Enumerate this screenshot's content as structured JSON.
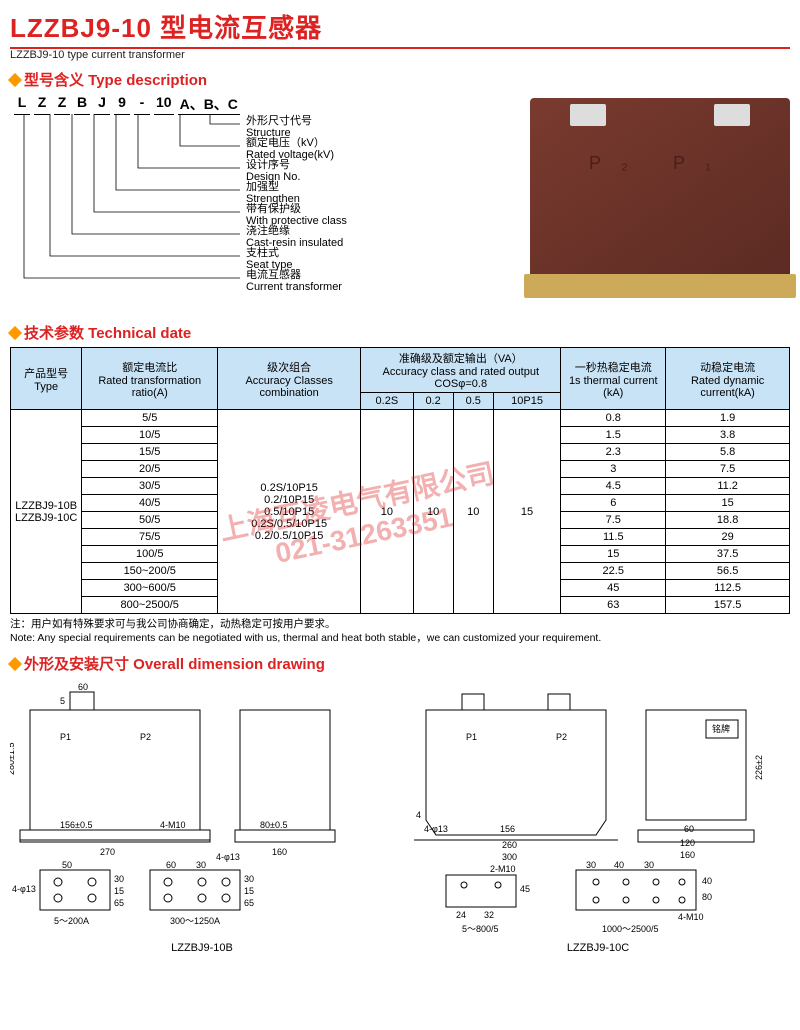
{
  "title": {
    "cn": "LZZBJ9-10 型电流互感器",
    "en": "LZZBJ9-10  type current transformer"
  },
  "sections": {
    "typedesc": "型号含义 Type description",
    "tech": "技术参数 Technical date",
    "dims": "外形及安装尺寸 Overall dimension drawing"
  },
  "typecode": {
    "letters": [
      "L",
      "Z",
      "Z",
      "B",
      "J",
      "9",
      "-",
      "10",
      "A、B、C"
    ]
  },
  "typedesc_items": [
    {
      "cn": "外形尺寸代号",
      "en": "Structure"
    },
    {
      "cn": "额定电压（kV）",
      "en": "Rated voltage(kV)"
    },
    {
      "cn": "设计序号",
      "en": "Design No."
    },
    {
      "cn": "加强型",
      "en": "Strengthen"
    },
    {
      "cn": "带有保护级",
      "en": "With protective class"
    },
    {
      "cn": "浇注绝缘",
      "en": "Cast-resin insulated"
    },
    {
      "cn": "支柱式",
      "en": "Seat type"
    },
    {
      "cn": "电流互感器",
      "en": "Current transformer"
    }
  ],
  "watermark": {
    "line1": "上海互凌电气有限公司",
    "line2": "021-31263351"
  },
  "table": {
    "headers": {
      "type": {
        "cn": "产品型号",
        "en": "Type"
      },
      "ratio": {
        "cn": "额定电流比",
        "en": "Rated transformation ratio(A)"
      },
      "classes": {
        "cn": "级次组合",
        "en": "Accuracy Classes combination"
      },
      "accuracy": {
        "cn": "准确级及额定输出（VA）",
        "en": "Accuracy class and rated output COSφ=0.8"
      },
      "thermal": {
        "cn": "一秒热稳定电流",
        "en": "1s thermal current (kA)"
      },
      "dynamic": {
        "cn": "动稳定电流",
        "en": "Rated dynamic current(kA)"
      },
      "cols": [
        "0.2S",
        "0.2",
        "0.5",
        "10P15"
      ]
    },
    "type_label": "LZZBJ9-10B\nLZZBJ9-10C",
    "classes_list": "0.2S/10P15\n0.2/10P15\n0.5/10P15\n0.2S/0.5/10P15\n0.2/0.5/10P15",
    "output_vals": {
      "c02s": "10",
      "c02": "10",
      "c05": "10",
      "c10p15": "15"
    },
    "rows": [
      {
        "ratio": "5/5",
        "thermal": "0.8",
        "dynamic": "1.9"
      },
      {
        "ratio": "10/5",
        "thermal": "1.5",
        "dynamic": "3.8"
      },
      {
        "ratio": "15/5",
        "thermal": "2.3",
        "dynamic": "5.8"
      },
      {
        "ratio": "20/5",
        "thermal": "3",
        "dynamic": "7.5"
      },
      {
        "ratio": "30/5",
        "thermal": "4.5",
        "dynamic": "11.2"
      },
      {
        "ratio": "40/5",
        "thermal": "6",
        "dynamic": "15"
      },
      {
        "ratio": "50/5",
        "thermal": "7.5",
        "dynamic": "18.8"
      },
      {
        "ratio": "75/5",
        "thermal": "11.5",
        "dynamic": "29"
      },
      {
        "ratio": "100/5",
        "thermal": "15",
        "dynamic": "37.5"
      },
      {
        "ratio": "150~200/5",
        "thermal": "22.5",
        "dynamic": "56.5"
      },
      {
        "ratio": "300~600/5",
        "thermal": "45",
        "dynamic": "112.5"
      },
      {
        "ratio": "800~2500/5",
        "thermal": "63",
        "dynamic": "157.5"
      }
    ]
  },
  "note": {
    "cn": "注：用户如有特殊要求可与我公司协商确定，动热稳定可按用户要求。",
    "en": "Note: Any special requirements can be negotiated with us, thermal and heat both stable，we can customized your requirement."
  },
  "dims": {
    "b": {
      "front": {
        "p1": "P1",
        "p2": "P2",
        "d156": "156±0.5",
        "d270": "270",
        "hole": "4-M10",
        "h280": "280±1.5",
        "d60": "60",
        "d5": "5"
      },
      "side": {
        "d80": "80±0.5",
        "d160": "160"
      },
      "mount1": {
        "d50": "50",
        "hole": "4-φ13",
        "d30": "30",
        "d15": "15",
        "d65": "65",
        "label": "5～200A"
      },
      "mount2": {
        "d60": "60",
        "d30": "30",
        "hole": "4-φ13",
        "d30b": "30",
        "d15": "15",
        "d65": "65",
        "label": "300～1250A"
      },
      "label": "LZZBJ9-10B"
    },
    "c": {
      "front": {
        "p1": "P1",
        "p2": "P2",
        "d156": "156",
        "d260": "260",
        "d300": "300",
        "hole": "4-φ13",
        "d4": "4"
      },
      "side": {
        "mp": "铭牌",
        "d60": "60",
        "d120": "120",
        "d160": "160",
        "h226": "226±2"
      },
      "mount1": {
        "hole": "2-M10",
        "d45": "45",
        "d24": "24",
        "d32": "32",
        "label": "5～800/5"
      },
      "mount2": {
        "d30": "30",
        "d40": "40",
        "d30b": "30",
        "d40b": "40",
        "d80": "80",
        "hole": "4-M10",
        "label": "1000～2500/5"
      },
      "label": "LZZBJ9-10C"
    }
  },
  "colors": {
    "accent": "#d22",
    "header_bg": "#c9e3f6",
    "diamond": "#f90"
  }
}
